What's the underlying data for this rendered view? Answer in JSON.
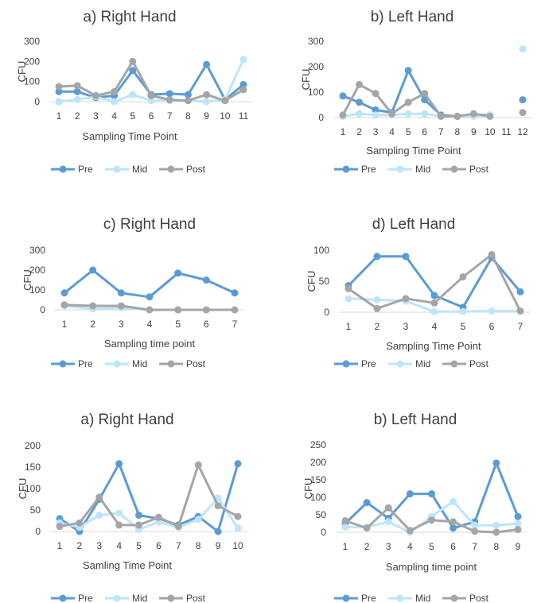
{
  "colors": {
    "Pre": "#5b9bd5",
    "Mid": "#bde5fb",
    "Post": "#a5a5a5"
  },
  "chart_data": [
    {
      "type": "line",
      "title": "a) Right Hand",
      "xlabel": "Sampling Time Point",
      "ylabel": "CFU",
      "categories": [
        "1",
        "2",
        "3",
        "4",
        "5",
        "6",
        "7",
        "8",
        "9",
        "10",
        "11"
      ],
      "ylim": [
        0,
        300
      ],
      "yticks": [
        0,
        100,
        200,
        300
      ],
      "grid": false,
      "legend": "bottom",
      "series": [
        {
          "name": "Pre",
          "values": [
            50,
            50,
            20,
            30,
            155,
            35,
            40,
            35,
            185,
            10,
            85
          ]
        },
        {
          "name": "Mid",
          "values": [
            0,
            10,
            25,
            0,
            35,
            5,
            5,
            5,
            0,
            10,
            210
          ]
        },
        {
          "name": "Post",
          "values": [
            75,
            80,
            30,
            50,
            200,
            30,
            10,
            5,
            35,
            5,
            60
          ]
        }
      ]
    },
    {
      "type": "line",
      "title": "b) Left Hand",
      "xlabel": "Sampling Time Point",
      "ylabel": "CFU",
      "categories": [
        "1",
        "2",
        "3",
        "4",
        "5",
        "6",
        "7",
        "8",
        "9",
        "10",
        "11",
        "12"
      ],
      "ylim": [
        0,
        300
      ],
      "yticks": [
        0,
        100,
        200,
        300
      ],
      "grid": false,
      "legend": "bottom",
      "series": [
        {
          "name": "Pre",
          "values": [
            85,
            60,
            30,
            20,
            185,
            70,
            10,
            5,
            10,
            10,
            null,
            70
          ]
        },
        {
          "name": "Mid",
          "values": [
            5,
            15,
            10,
            10,
            15,
            15,
            5,
            5,
            5,
            10,
            null,
            270
          ]
        },
        {
          "name": "Post",
          "values": [
            10,
            130,
            95,
            15,
            60,
            95,
            5,
            5,
            15,
            5,
            null,
            20
          ]
        }
      ]
    },
    {
      "type": "line",
      "title": "c) Right Hand",
      "xlabel": "Sampling time point",
      "ylabel": "CFU",
      "categories": [
        "1",
        "2",
        "3",
        "4",
        "5",
        "6",
        "7"
      ],
      "ylim": [
        0,
        300
      ],
      "yticks": [
        0,
        100,
        200,
        300
      ],
      "grid": false,
      "legend": "bottom",
      "series": [
        {
          "name": "Pre",
          "values": [
            85,
            200,
            85,
            65,
            185,
            150,
            85
          ]
        },
        {
          "name": "Mid",
          "values": [
            20,
            5,
            10,
            0,
            0,
            0,
            0
          ]
        },
        {
          "name": "Post",
          "values": [
            25,
            20,
            20,
            0,
            0,
            0,
            0
          ]
        }
      ]
    },
    {
      "type": "line",
      "title": "d) Left Hand",
      "xlabel": "Sampling Time Point",
      "ylabel": "CFU",
      "categories": [
        "1",
        "2",
        "3",
        "4",
        "5",
        "6",
        "7"
      ],
      "ylim": [
        0,
        100
      ],
      "yticks": [
        0,
        50,
        100
      ],
      "grid": false,
      "legend": "bottom",
      "series": [
        {
          "name": "Pre",
          "values": [
            43,
            90,
            90,
            27,
            8,
            88,
            33
          ]
        },
        {
          "name": "Mid",
          "values": [
            22,
            20,
            18,
            1,
            1,
            2,
            2
          ]
        },
        {
          "name": "Post",
          "values": [
            38,
            6,
            22,
            15,
            57,
            93,
            2
          ]
        }
      ]
    },
    {
      "type": "line",
      "title": "a) Right Hand",
      "xlabel": "Samling Time Point",
      "ylabel": "CFU",
      "categories": [
        "1",
        "2",
        "3",
        "4",
        "5",
        "6",
        "7",
        "8",
        "9",
        "10"
      ],
      "ylim": [
        0,
        200
      ],
      "yticks": [
        0,
        50,
        100,
        150,
        200
      ],
      "grid": false,
      "legend": "bottom",
      "series": [
        {
          "name": "Pre",
          "values": [
            30,
            0,
            75,
            158,
            38,
            30,
            15,
            35,
            0,
            158
          ]
        },
        {
          "name": "Mid",
          "values": [
            20,
            10,
            38,
            43,
            5,
            22,
            10,
            28,
            78,
            8
          ]
        },
        {
          "name": "Post",
          "values": [
            12,
            20,
            80,
            15,
            15,
            33,
            12,
            155,
            60,
            35
          ]
        }
      ]
    },
    {
      "type": "line",
      "title": "b) Left Hand",
      "xlabel": "Sampling time point",
      "ylabel": "CFU",
      "categories": [
        "1",
        "2",
        "3",
        "4",
        "5",
        "6",
        "7",
        "8",
        "9"
      ],
      "ylim": [
        0,
        250
      ],
      "yticks": [
        0,
        50,
        100,
        150,
        200,
        250
      ],
      "grid": false,
      "legend": "bottom",
      "series": [
        {
          "name": "Pre",
          "values": [
            25,
            85,
            40,
            110,
            110,
            12,
            30,
            198,
            45
          ]
        },
        {
          "name": "Mid",
          "values": [
            15,
            15,
            30,
            0,
            45,
            88,
            20,
            20,
            25
          ]
        },
        {
          "name": "Post",
          "values": [
            33,
            12,
            70,
            5,
            35,
            30,
            3,
            0,
            8
          ]
        }
      ]
    }
  ]
}
